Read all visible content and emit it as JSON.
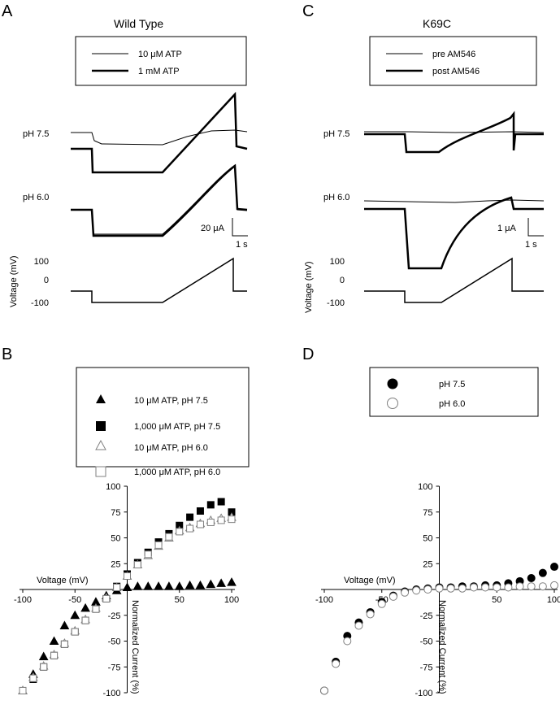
{
  "panels": {
    "A": {
      "letter": "A",
      "title": "Wild Type",
      "legend": [
        "10 μM  ATP",
        "1 mM ATP"
      ],
      "trace_labels": [
        "pH 7.5",
        "pH 6.0"
      ],
      "scale_y": "20 μA",
      "scale_x": "1 s",
      "voltage_label": "Voltage (mV)",
      "voltage_ticks": [
        "100",
        "0",
        "-100"
      ]
    },
    "C": {
      "letter": "C",
      "title": "K69C",
      "legend": [
        "pre AM546",
        "post AM546"
      ],
      "trace_labels": [
        "pH 7.5",
        "pH 6.0"
      ],
      "scale_y": "1 μA",
      "scale_x": "1 s",
      "voltage_label": "Voltage (mV)",
      "voltage_ticks": [
        "100",
        "0",
        "-100"
      ]
    },
    "B": {
      "letter": "B",
      "legend": [
        "10 μM ATP, pH 7.5",
        "1,000 μM ATP, pH 7.5",
        "10 μM ATP, pH 6.0",
        "1,000 μM ATP, pH 6.0"
      ],
      "xlabel": "Voltage (mV)",
      "ylabel": "Normalized Current (%)"
    },
    "D": {
      "letter": "D",
      "legend": [
        "pH 7.5",
        "pH 6.0"
      ],
      "xlabel": "Voltage (mV)",
      "ylabel": "Normalized Current (%)"
    }
  },
  "chart_data": [
    {
      "type": "scatter",
      "panel": "B",
      "xlim": [
        -100,
        100
      ],
      "ylim": [
        -100,
        100
      ],
      "x_ticks": [
        -100,
        -50,
        50,
        100
      ],
      "y_ticks": [
        100,
        75,
        50,
        25,
        -25,
        -50,
        -75,
        -100
      ],
      "x": [
        -100,
        -90,
        -80,
        -70,
        -60,
        -50,
        -40,
        -30,
        -20,
        -10,
        0,
        10,
        20,
        30,
        40,
        50,
        60,
        70,
        80,
        90,
        100
      ],
      "series": [
        {
          "name": "10 μM ATP, pH 7.5",
          "marker": "triangle-filled",
          "values": [
            -98,
            -82,
            -65,
            -50,
            -35,
            -25,
            -18,
            -12,
            -6,
            -1,
            2,
            3,
            3,
            3,
            3,
            3,
            4,
            4,
            5,
            6,
            7
          ]
        },
        {
          "name": "1,000 μM ATP, pH 7.5",
          "marker": "square-filled",
          "values": [
            -98,
            -87,
            -75,
            -64,
            -53,
            -41,
            -30,
            -19,
            -9,
            3,
            15,
            26,
            36,
            46,
            54,
            62,
            70,
            76,
            82,
            85,
            75
          ]
        },
        {
          "name": "10 μM ATP, pH 6.0",
          "marker": "triangle-open",
          "values": [
            -98,
            -85,
            -74,
            -63,
            -52,
            -40,
            -29,
            -18,
            -8,
            2,
            13,
            24,
            33,
            42,
            50,
            57,
            60,
            64,
            67,
            69,
            70
          ]
        },
        {
          "name": "1,000 μM ATP, pH 6.0",
          "marker": "square-open",
          "values": [
            -98,
            -86,
            -75,
            -64,
            -53,
            -41,
            -30,
            -19,
            -9,
            2,
            13,
            24,
            34,
            43,
            51,
            56,
            59,
            63,
            65,
            67,
            68
          ]
        }
      ]
    },
    {
      "type": "scatter",
      "panel": "D",
      "xlim": [
        -100,
        100
      ],
      "ylim": [
        -100,
        100
      ],
      "x_ticks": [
        -100,
        -50,
        50,
        100
      ],
      "y_ticks": [
        100,
        75,
        50,
        25,
        -25,
        -50,
        -75,
        -100
      ],
      "x": [
        -100,
        -90,
        -80,
        -70,
        -60,
        -50,
        -40,
        -30,
        -20,
        -10,
        0,
        10,
        20,
        30,
        40,
        50,
        60,
        70,
        80,
        90,
        100
      ],
      "series": [
        {
          "name": "pH 7.5",
          "marker": "circle-filled",
          "values": [
            -98,
            -70,
            -45,
            -32,
            -22,
            -12,
            -6,
            -2,
            0,
            1,
            2,
            2,
            3,
            3,
            4,
            4,
            6,
            8,
            11,
            16,
            22
          ]
        },
        {
          "name": "pH 6.0",
          "marker": "circle-open",
          "values": [
            -98,
            -72,
            -50,
            -35,
            -24,
            -14,
            -7,
            -3,
            -1,
            0,
            1,
            1,
            1,
            2,
            2,
            2,
            2,
            3,
            3,
            3,
            4
          ]
        }
      ]
    }
  ]
}
